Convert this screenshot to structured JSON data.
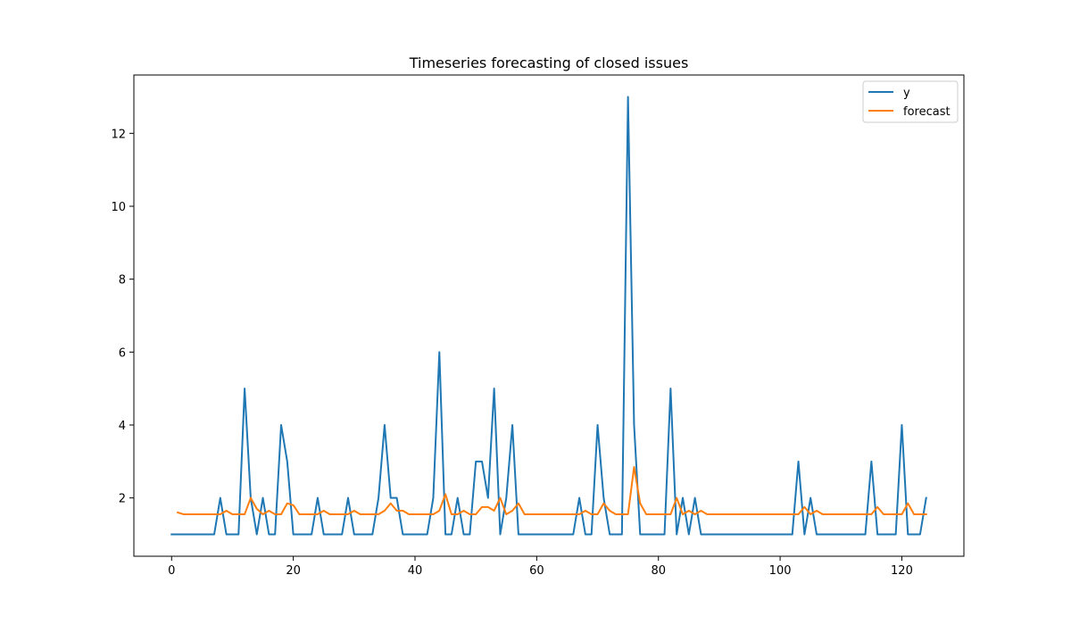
{
  "chart_data": {
    "type": "line",
    "title": "Timeseries forecasting of closed issues",
    "xlabel": "",
    "ylabel": "",
    "xlim": [
      -6.2,
      130.2
    ],
    "ylim": [
      0.4,
      13.6
    ],
    "xticks": [
      0,
      20,
      40,
      60,
      80,
      100,
      120
    ],
    "yticks": [
      2,
      4,
      6,
      8,
      10,
      12
    ],
    "grid": false,
    "legend": "top-right",
    "series": [
      {
        "name": "y",
        "color": "#1f77b4",
        "x_start": 0,
        "values": [
          1,
          1,
          1,
          1,
          1,
          1,
          1,
          1,
          2,
          1,
          1,
          1,
          5,
          2,
          1,
          2,
          1,
          1,
          4,
          3,
          1,
          1,
          1,
          1,
          2,
          1,
          1,
          1,
          1,
          2,
          1,
          1,
          1,
          1,
          2,
          4,
          2,
          2,
          1,
          1,
          1,
          1,
          1,
          2,
          6,
          1,
          1,
          2,
          1,
          1,
          3,
          3,
          2,
          5,
          1,
          2,
          4,
          1,
          1,
          1,
          1,
          1,
          1,
          1,
          1,
          1,
          1,
          2,
          1,
          1,
          4,
          2,
          1,
          1,
          1,
          13,
          4,
          1,
          1,
          1,
          1,
          1,
          5,
          1,
          2,
          1,
          2,
          1,
          1,
          1,
          1,
          1,
          1,
          1,
          1,
          1,
          1,
          1,
          1,
          1,
          1,
          1,
          1,
          3,
          1,
          2,
          1,
          1,
          1,
          1,
          1,
          1,
          1,
          1,
          1,
          3,
          1,
          1,
          1,
          1,
          4,
          1,
          1,
          1,
          2
        ]
      },
      {
        "name": "forecast",
        "color": "#ff7f0e",
        "x_start": 1,
        "values": [
          1.6,
          1.55,
          1.55,
          1.55,
          1.55,
          1.55,
          1.55,
          1.55,
          1.65,
          1.55,
          1.55,
          1.55,
          2.0,
          1.7,
          1.55,
          1.65,
          1.55,
          1.55,
          1.85,
          1.8,
          1.55,
          1.55,
          1.55,
          1.55,
          1.65,
          1.55,
          1.55,
          1.55,
          1.55,
          1.65,
          1.55,
          1.55,
          1.55,
          1.55,
          1.65,
          1.85,
          1.65,
          1.65,
          1.55,
          1.55,
          1.55,
          1.55,
          1.55,
          1.65,
          2.1,
          1.55,
          1.55,
          1.65,
          1.55,
          1.55,
          1.75,
          1.75,
          1.65,
          2.0,
          1.55,
          1.65,
          1.85,
          1.55,
          1.55,
          1.55,
          1.55,
          1.55,
          1.55,
          1.55,
          1.55,
          1.55,
          1.55,
          1.65,
          1.55,
          1.55,
          1.85,
          1.65,
          1.55,
          1.55,
          1.55,
          2.85,
          1.85,
          1.55,
          1.55,
          1.55,
          1.55,
          1.55,
          2.0,
          1.55,
          1.65,
          1.55,
          1.65,
          1.55,
          1.55,
          1.55,
          1.55,
          1.55,
          1.55,
          1.55,
          1.55,
          1.55,
          1.55,
          1.55,
          1.55,
          1.55,
          1.55,
          1.55,
          1.55,
          1.75,
          1.55,
          1.65,
          1.55,
          1.55,
          1.55,
          1.55,
          1.55,
          1.55,
          1.55,
          1.55,
          1.55,
          1.75,
          1.55,
          1.55,
          1.55,
          1.55,
          1.85,
          1.55,
          1.55,
          1.55
        ]
      }
    ]
  }
}
